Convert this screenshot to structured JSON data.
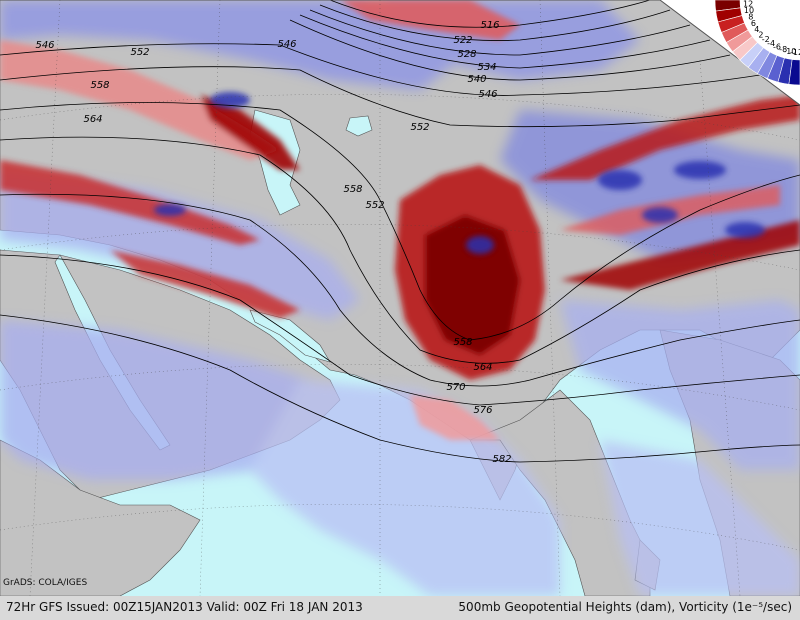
{
  "map": {
    "contour_labels": [
      "516",
      "522",
      "528",
      "534",
      "540",
      "546",
      "546",
      "546",
      "552",
      "552",
      "552",
      "558",
      "558",
      "558",
      "564",
      "564",
      "570",
      "576",
      "582"
    ],
    "legend": {
      "labels": [
        "12",
        "10",
        "8",
        "6",
        "4",
        "2",
        "-2",
        "-4",
        "-6",
        "-8",
        "-10",
        "-12"
      ],
      "colors": [
        "#7a0000",
        "#a00000",
        "#c82020",
        "#e05a5a",
        "#f09a9a",
        "#f8c8c8",
        "#c8d0f8",
        "#a8b0f0",
        "#8088e0",
        "#5a60d0",
        "#2a30b0",
        "#0a0a90"
      ]
    },
    "colors": {
      "ocean": "#c8f5f8",
      "land": "#c2c2c2",
      "positive_vorticity": "#a00000",
      "negative_vorticity": "#2a30b0",
      "frame": "#d9d9d9"
    }
  },
  "caption": {
    "left": "72Hr GFS Issued: 00Z15JAN2013 Valid: 00Z Fri 18 JAN 2013",
    "right": "500mb Geopotential Heights (dam), Vorticity (1e⁻⁵/sec)"
  },
  "credit": "GrADS: COLA/IGES"
}
